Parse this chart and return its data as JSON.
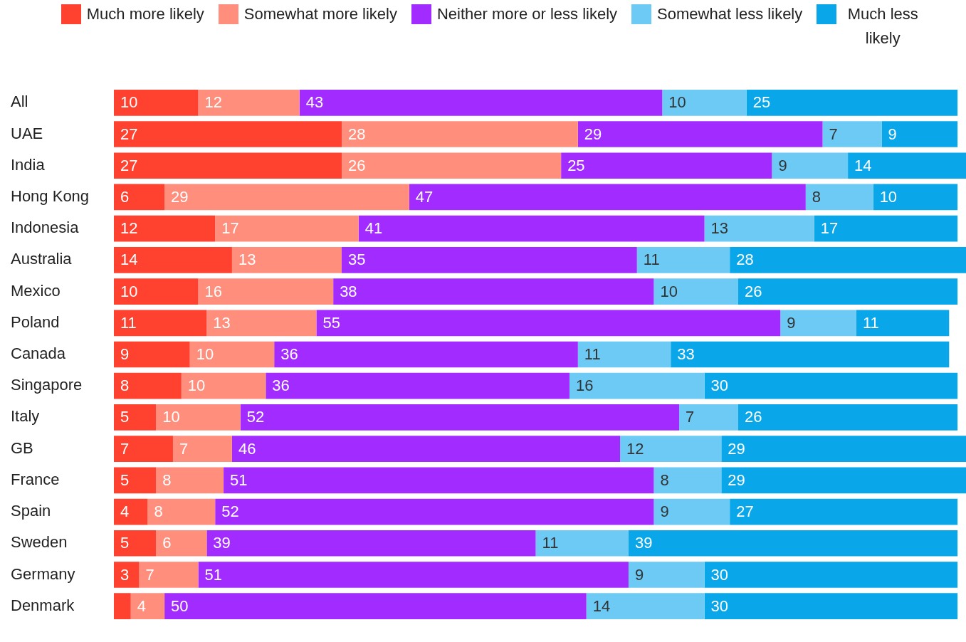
{
  "chart_data": {
    "type": "bar",
    "orientation": "horizontal",
    "stacked": true,
    "legend": "top",
    "tick_labels": "y",
    "xlim": [
      0,
      101
    ],
    "categories": [
      "All",
      "UAE",
      "India",
      "Hong Kong",
      "Indonesia",
      "Australia",
      "Mexico",
      "Poland",
      "Canada",
      "Singapore",
      "Italy",
      "GB",
      "France",
      "Spain",
      "Sweden",
      "Germany",
      "Denmark"
    ],
    "series": [
      {
        "name": "Much more likely",
        "color": "#ff4130",
        "values": [
          10,
          27,
          27,
          6,
          12,
          14,
          10,
          11,
          9,
          8,
          5,
          7,
          5,
          4,
          5,
          3,
          2
        ],
        "value_labels": [
          "10",
          "27",
          "27",
          "6",
          "12",
          "14",
          "10",
          "11",
          "9",
          "8",
          "5",
          "7",
          "5",
          "4",
          "5",
          "3",
          null
        ]
      },
      {
        "name": "Somewhat more likely",
        "color": "#ff8f7c",
        "values": [
          12,
          28,
          26,
          29,
          17,
          13,
          16,
          13,
          10,
          10,
          10,
          7,
          8,
          8,
          6,
          7,
          4
        ],
        "value_labels": [
          "12",
          "28",
          "26",
          "29",
          "17",
          "13",
          "16",
          "13",
          "10",
          "10",
          "10",
          "7",
          "8",
          "8",
          "6",
          "7",
          "4"
        ]
      },
      {
        "name": "Neither more or less likely",
        "color": "#a22cff",
        "values": [
          43,
          29,
          25,
          47,
          41,
          35,
          38,
          55,
          36,
          36,
          52,
          46,
          51,
          52,
          39,
          51,
          50
        ],
        "value_labels": [
          "43",
          "29",
          "25",
          "47",
          "41",
          "35",
          "38",
          "55",
          "36",
          "36",
          "52",
          "46",
          "51",
          "52",
          "39",
          "51",
          "50"
        ]
      },
      {
        "name": "Somewhat less likely",
        "color": "#6dcaf5",
        "values": [
          10,
          7,
          9,
          8,
          13,
          11,
          10,
          9,
          11,
          16,
          7,
          12,
          8,
          9,
          11,
          9,
          14
        ],
        "value_labels": [
          "10",
          "7",
          "9",
          "8",
          "13",
          "11",
          "10",
          "9",
          "11",
          "16",
          "7",
          "12",
          "8",
          "9",
          "11",
          "9",
          "14"
        ]
      },
      {
        "name": "Much less likely",
        "color": "#0aa6ea",
        "values": [
          25,
          9,
          14,
          10,
          17,
          28,
          26,
          11,
          33,
          30,
          26,
          29,
          29,
          27,
          39,
          30,
          30
        ],
        "value_labels": [
          "25",
          "9",
          "14",
          "10",
          "17",
          "28",
          "26",
          "11",
          "33",
          "30",
          "26",
          "29",
          "29",
          "27",
          "39",
          "30",
          "30"
        ]
      }
    ]
  }
}
